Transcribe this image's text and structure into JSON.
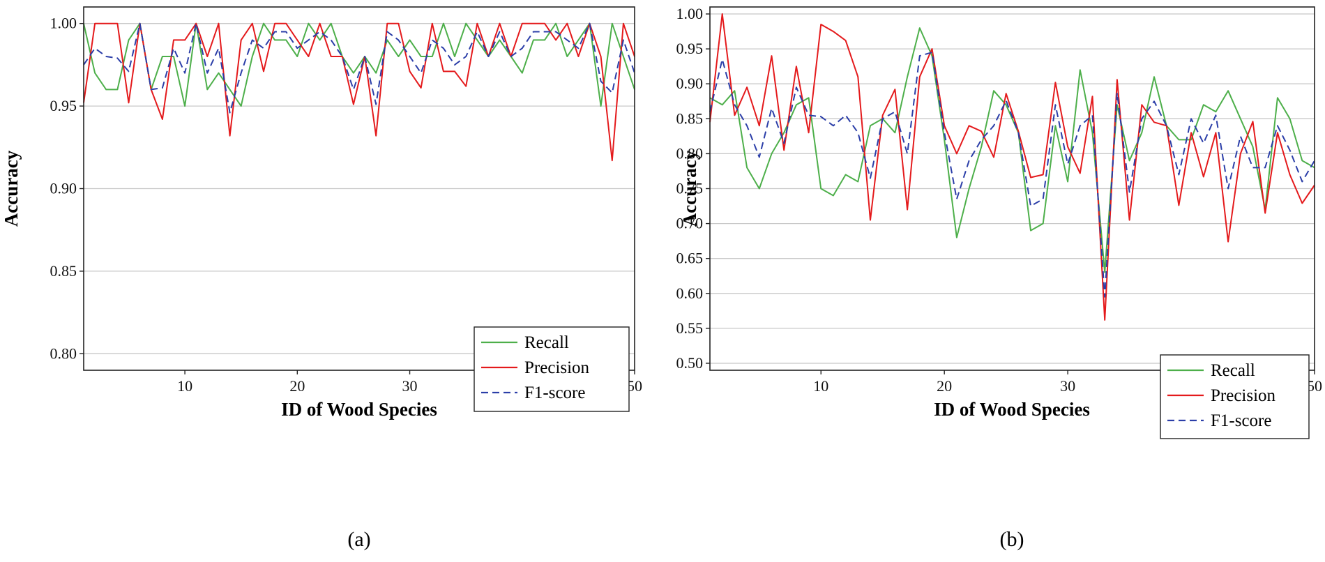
{
  "chart_data": [
    {
      "panel_label": "(a)",
      "type": "line",
      "xlabel": "ID of Wood Species",
      "ylabel": "Accuracy",
      "xlim": [
        1,
        50
      ],
      "ylim": [
        0.79,
        1.01
      ],
      "x_ticks": [
        10,
        20,
        30,
        40,
        50
      ],
      "y_ticks": [
        0.8,
        0.85,
        0.9,
        0.95,
        1.0
      ],
      "y_tick_labels": [
        "0.80",
        "0.85",
        "0.90",
        "0.95",
        "1.00"
      ],
      "grid": "horizontal",
      "legend_position": "bottom-right",
      "series": [
        {
          "name": "Recall",
          "color": "#4daf4a",
          "style": "solid",
          "values": [
            1.0,
            0.97,
            0.96,
            0.96,
            0.99,
            1.0,
            0.96,
            0.98,
            0.98,
            0.95,
            1.0,
            0.96,
            0.97,
            0.96,
            0.95,
            0.98,
            1.0,
            0.99,
            0.99,
            0.98,
            1.0,
            0.99,
            1.0,
            0.98,
            0.97,
            0.98,
            0.97,
            0.99,
            0.98,
            0.99,
            0.98,
            0.98,
            1.0,
            0.98,
            1.0,
            0.99,
            0.98,
            0.99,
            0.98,
            0.97,
            0.99,
            0.99,
            1.0,
            0.98,
            0.99,
            1.0,
            0.95,
            1.0,
            0.98,
            0.96
          ]
        },
        {
          "name": "Precision",
          "color": "#e41a1c",
          "style": "solid",
          "values": [
            0.952,
            1.0,
            1.0,
            1.0,
            0.952,
            1.0,
            0.96,
            0.942,
            0.99,
            0.99,
            1.0,
            0.98,
            1.0,
            0.932,
            0.99,
            1.0,
            0.971,
            1.0,
            1.0,
            0.99,
            0.98,
            1.0,
            0.98,
            0.98,
            0.951,
            0.98,
            0.932,
            1.0,
            1.0,
            0.971,
            0.961,
            1.0,
            0.971,
            0.971,
            0.962,
            1.0,
            0.98,
            1.0,
            0.98,
            1.0,
            1.0,
            1.0,
            0.99,
            1.0,
            0.98,
            1.0,
            0.98,
            0.917,
            1.0,
            0.98
          ]
        },
        {
          "name": "F1-score",
          "color": "#2b3ea8",
          "style": "dashed",
          "values": [
            0.975,
            0.985,
            0.98,
            0.979,
            0.971,
            1.0,
            0.96,
            0.961,
            0.985,
            0.97,
            1.0,
            0.97,
            0.985,
            0.946,
            0.97,
            0.99,
            0.985,
            0.995,
            0.995,
            0.985,
            0.99,
            0.995,
            0.99,
            0.98,
            0.96,
            0.98,
            0.951,
            0.995,
            0.99,
            0.98,
            0.97,
            0.99,
            0.985,
            0.975,
            0.98,
            0.995,
            0.98,
            0.995,
            0.98,
            0.985,
            0.995,
            0.995,
            0.995,
            0.99,
            0.985,
            1.0,
            0.965,
            0.958,
            0.99,
            0.97
          ]
        }
      ]
    },
    {
      "panel_label": "(b)",
      "type": "line",
      "xlabel": "ID of Wood Species",
      "ylabel": "Accuracy",
      "xlim": [
        1,
        50
      ],
      "ylim": [
        0.49,
        1.01
      ],
      "x_ticks": [
        10,
        20,
        30,
        40,
        50
      ],
      "y_ticks": [
        0.5,
        0.55,
        0.6,
        0.65,
        0.7,
        0.75,
        0.8,
        0.85,
        0.9,
        0.95,
        1.0
      ],
      "y_tick_labels": [
        "0.50",
        "0.55",
        "0.60",
        "0.65",
        "0.70",
        "0.75",
        "0.80",
        "0.85",
        "0.90",
        "0.95",
        "1.00"
      ],
      "grid": "horizontal",
      "legend_position": "bottom-right",
      "series": [
        {
          "name": "Recall",
          "color": "#4daf4a",
          "style": "solid",
          "values": [
            0.88,
            0.87,
            0.89,
            0.78,
            0.75,
            0.8,
            0.83,
            0.87,
            0.88,
            0.75,
            0.74,
            0.77,
            0.76,
            0.84,
            0.85,
            0.83,
            0.91,
            0.98,
            0.94,
            0.82,
            0.68,
            0.75,
            0.81,
            0.89,
            0.87,
            0.83,
            0.69,
            0.7,
            0.84,
            0.76,
            0.92,
            0.83,
            0.63,
            0.87,
            0.79,
            0.83,
            0.91,
            0.84,
            0.82,
            0.82,
            0.87,
            0.86,
            0.89,
            0.85,
            0.81,
            0.72,
            0.88,
            0.85,
            0.79,
            0.78
          ]
        },
        {
          "name": "Precision",
          "color": "#e41a1c",
          "style": "solid",
          "values": [
            0.845,
            1.0,
            0.855,
            0.895,
            0.84,
            0.94,
            0.805,
            0.925,
            0.83,
            0.985,
            0.975,
            0.962,
            0.91,
            0.705,
            0.855,
            0.892,
            0.72,
            0.91,
            0.95,
            0.84,
            0.8,
            0.84,
            0.832,
            0.795,
            0.886,
            0.832,
            0.766,
            0.77,
            0.902,
            0.81,
            0.772,
            0.882,
            0.562,
            0.906,
            0.705,
            0.87,
            0.845,
            0.84,
            0.726,
            0.83,
            0.767,
            0.83,
            0.674,
            0.8,
            0.846,
            0.715,
            0.83,
            0.77,
            0.729,
            0.755
          ]
        },
        {
          "name": "F1-score",
          "color": "#2b3ea8",
          "style": "dashed",
          "values": [
            0.86,
            0.935,
            0.87,
            0.84,
            0.795,
            0.865,
            0.815,
            0.895,
            0.855,
            0.853,
            0.84,
            0.855,
            0.83,
            0.765,
            0.85,
            0.86,
            0.8,
            0.94,
            0.945,
            0.83,
            0.735,
            0.79,
            0.82,
            0.84,
            0.876,
            0.83,
            0.725,
            0.735,
            0.87,
            0.785,
            0.84,
            0.855,
            0.595,
            0.887,
            0.745,
            0.85,
            0.875,
            0.84,
            0.77,
            0.85,
            0.815,
            0.855,
            0.75,
            0.825,
            0.78,
            0.78,
            0.84,
            0.805,
            0.76,
            0.79
          ]
        }
      ]
    }
  ]
}
